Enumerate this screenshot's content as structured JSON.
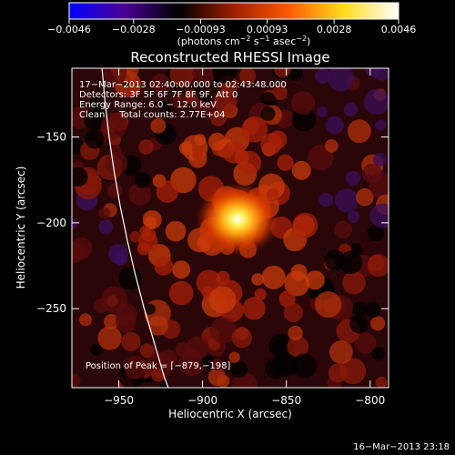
{
  "chart_data": {
    "type": "heatmap",
    "title": "Reconstructed RHESSI Image",
    "xlabel": "Heliocentric X (arcsec)",
    "ylabel": "Heliocentric Y (arcsec)",
    "xlim": [
      -978,
      -789
    ],
    "ylim": [
      -296,
      -110
    ],
    "xticks": [
      -950,
      -900,
      -850,
      -800
    ],
    "xtick_labels": [
      "−950",
      "−900",
      "−850",
      "−800"
    ],
    "yticks": [
      -150,
      -200,
      -250
    ],
    "ytick_labels": [
      "−150",
      "−200",
      "−250"
    ],
    "colorbar": {
      "min": -0.0046,
      "max": 0.0046,
      "ticks": [
        -0.0046,
        -0.0028,
        -0.00093,
        0.00093,
        0.0028,
        0.0046
      ],
      "tick_labels": [
        "−0.0046",
        "−0.0028",
        "−0.00093",
        "0.00093",
        "0.0028",
        "0.0046"
      ],
      "units_parts": [
        "(photons cm",
        "−2",
        " s",
        "−1",
        " asec",
        "−2",
        ")"
      ],
      "colors": [
        "#0000ff",
        "#4b0096",
        "#000000",
        "#a01e00",
        "#ff5a00",
        "#ffdc1e",
        "#ffffff"
      ]
    },
    "peak": {
      "x": -879,
      "y": -198
    },
    "info_lines": [
      "17−Mar−2013 02:40:00.000 to 02:43:48.000",
      "Detectors: 3F 5F 6F 7F 8F 9F, Att 0",
      "Energy Range: 6.0 − 12.0 keV",
      "Clean     Total counts: 2.77E+04"
    ],
    "peak_label": "Position of Peak = [−879,−198]",
    "limb_curve": [
      {
        "x": -960.0,
        "y": -110
      },
      {
        "x": -958.2,
        "y": -130
      },
      {
        "x": -955.8,
        "y": -150
      },
      {
        "x": -952.8,
        "y": -170
      },
      {
        "x": -949.2,
        "y": -190
      },
      {
        "x": -945.0,
        "y": -210
      },
      {
        "x": -940.2,
        "y": -230
      },
      {
        "x": -934.8,
        "y": -250
      },
      {
        "x": -928.8,
        "y": -270
      },
      {
        "x": -922.8,
        "y": -290
      },
      {
        "x": -920.4,
        "y": -296
      }
    ]
  },
  "footer": {
    "timestamp": "16−Mar−2013 23:18"
  }
}
